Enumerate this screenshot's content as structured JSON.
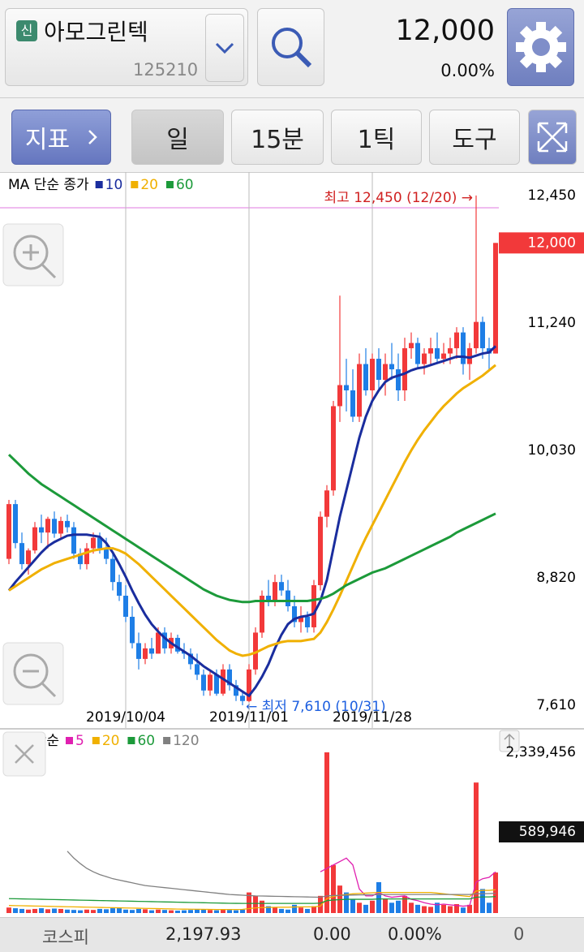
{
  "header": {
    "badge": "신",
    "stock_name": "아모그린텍",
    "stock_code": "125210",
    "price": "12,000",
    "change_rate": "0.00%"
  },
  "toolbar": {
    "indicator": "지표",
    "tabs": [
      "일",
      "15분",
      "1틱"
    ],
    "tools": "도구"
  },
  "chart_data": [
    {
      "type": "candlestick",
      "legend_title": "MA 단순 종가",
      "categories": [
        null,
        null,
        null,
        null,
        null,
        null,
        null,
        null,
        null,
        null,
        null,
        null,
        null,
        null,
        null,
        null,
        null,
        null,
        "2019/10/04",
        null,
        null,
        null,
        null,
        null,
        null,
        null,
        null,
        null,
        null,
        null,
        null,
        null,
        null,
        null,
        null,
        null,
        null,
        "2019/11/01",
        null,
        null,
        null,
        null,
        null,
        null,
        null,
        null,
        null,
        null,
        null,
        null,
        null,
        null,
        null,
        null,
        null,
        null,
        "2019/11/28",
        null,
        null,
        null,
        null,
        null,
        null,
        null,
        null,
        null,
        null,
        null,
        null,
        null,
        null,
        null,
        null,
        null,
        null,
        null
      ],
      "open": [
        9000,
        9520,
        9150,
        8950,
        9080,
        9300,
        9250,
        9380,
        9240,
        9360,
        9300,
        9050,
        8950,
        9100,
        9200,
        9100,
        9000,
        8780,
        8650,
        8450,
        8200,
        8050,
        8150,
        8100,
        8300,
        8150,
        8250,
        8120,
        8100,
        8000,
        7900,
        7750,
        7900,
        7720,
        7950,
        7800,
        7700,
        7650,
        7950,
        8300,
        8650,
        8600,
        8780,
        8700,
        8550,
        8400,
        8450,
        8350,
        8750,
        9400,
        9650,
        10450,
        10650,
        10600,
        10350,
        10850,
        10600,
        10900,
        10700,
        10850,
        10800,
        10600,
        11000,
        11050,
        10850,
        10950,
        11000,
        10900,
        10950,
        11000,
        11150,
        10850,
        11000,
        11250,
        11000,
        10950
      ],
      "high": [
        9560,
        9560,
        9250,
        9100,
        9350,
        9420,
        9400,
        9450,
        9400,
        9420,
        9350,
        9100,
        9150,
        9250,
        9250,
        9200,
        9050,
        8850,
        8750,
        8550,
        8300,
        8200,
        8250,
        8350,
        8350,
        8300,
        8280,
        8200,
        8150,
        8100,
        7950,
        7950,
        7950,
        8000,
        8000,
        7850,
        7750,
        8000,
        8350,
        8700,
        8800,
        8850,
        8850,
        8800,
        8650,
        8550,
        8500,
        8800,
        9450,
        9700,
        10500,
        11500,
        10900,
        10800,
        10950,
        11000,
        10950,
        11000,
        10950,
        11050,
        10950,
        11100,
        11150,
        11100,
        11000,
        11100,
        11150,
        11050,
        11100,
        11200,
        11200,
        11050,
        12450,
        11300,
        11100,
        12000
      ],
      "low": [
        8950,
        9100,
        8900,
        8850,
        9050,
        9150,
        9100,
        9200,
        9200,
        9250,
        9000,
        8900,
        8900,
        9050,
        9050,
        8950,
        8700,
        8600,
        8400,
        8150,
        7950,
        8000,
        8050,
        8100,
        8100,
        8100,
        8100,
        8050,
        7950,
        7850,
        7700,
        7700,
        7700,
        7700,
        7750,
        7650,
        7610,
        7640,
        7900,
        8250,
        8550,
        8550,
        8650,
        8500,
        8350,
        8300,
        8300,
        8300,
        8700,
        9300,
        9600,
        10300,
        10400,
        10300,
        10300,
        10550,
        10500,
        10600,
        10550,
        10700,
        10500,
        10500,
        10900,
        10800,
        10750,
        10850,
        10850,
        10850,
        10850,
        10900,
        10750,
        10700,
        10950,
        10900,
        10800,
        10950
      ],
      "close": [
        9520,
        9150,
        8950,
        9080,
        9300,
        9250,
        9380,
        9240,
        9360,
        9300,
        9050,
        8950,
        9100,
        9200,
        9100,
        9000,
        8780,
        8650,
        8450,
        8200,
        8050,
        8150,
        8100,
        8300,
        8150,
        8250,
        8120,
        8100,
        8000,
        7900,
        7750,
        7900,
        7720,
        7950,
        7800,
        7700,
        7650,
        7950,
        8300,
        8650,
        8600,
        8780,
        8700,
        8550,
        8400,
        8450,
        8350,
        8750,
        9400,
        9650,
        10450,
        10650,
        10600,
        10350,
        10850,
        10600,
        10900,
        10700,
        10850,
        10800,
        10600,
        11000,
        11050,
        10850,
        10950,
        11000,
        10900,
        10950,
        11000,
        11150,
        10850,
        11000,
        11250,
        11000,
        10950,
        12000
      ],
      "up_color": "#f2393a",
      "down_color": "#1e7ee6",
      "series": [
        {
          "name": "10",
          "color": "#1a2d9e",
          "values": [
            8700,
            8780,
            8850,
            8920,
            8990,
            9060,
            9120,
            9160,
            9190,
            9220,
            9230,
            9230,
            9230,
            9220,
            9210,
            9150,
            9060,
            8950,
            8830,
            8700,
            8580,
            8470,
            8380,
            8310,
            8250,
            8200,
            8160,
            8120,
            8080,
            8030,
            7980,
            7940,
            7900,
            7860,
            7820,
            7780,
            7740,
            7700,
            7780,
            7880,
            8000,
            8150,
            8280,
            8380,
            8430,
            8450,
            8460,
            8480,
            8600,
            8800,
            9100,
            9400,
            9650,
            9900,
            10150,
            10350,
            10500,
            10600,
            10680,
            10720,
            10740,
            10760,
            10790,
            10810,
            10820,
            10840,
            10860,
            10880,
            10900,
            10920,
            10920,
            10910,
            10930,
            10950,
            10960,
            11020
          ]
        },
        {
          "name": "20",
          "color": "#f0b000",
          "values": [
            8700,
            8740,
            8780,
            8820,
            8860,
            8900,
            8930,
            8960,
            8980,
            9000,
            9020,
            9040,
            9060,
            9080,
            9090,
            9100,
            9100,
            9080,
            9050,
            9000,
            8950,
            8890,
            8830,
            8770,
            8710,
            8650,
            8590,
            8530,
            8470,
            8410,
            8350,
            8290,
            8230,
            8180,
            8130,
            8100,
            8080,
            8090,
            8110,
            8140,
            8170,
            8190,
            8210,
            8220,
            8220,
            8220,
            8230,
            8240,
            8300,
            8400,
            8520,
            8650,
            8790,
            8930,
            9070,
            9200,
            9320,
            9440,
            9560,
            9680,
            9800,
            9920,
            10030,
            10130,
            10220,
            10300,
            10380,
            10450,
            10510,
            10570,
            10620,
            10660,
            10700,
            10740,
            10790,
            10840
          ]
        },
        {
          "name": "60",
          "color": "#1c9a3a",
          "values": [
            9990,
            9930,
            9870,
            9810,
            9760,
            9710,
            9670,
            9630,
            9590,
            9550,
            9510,
            9470,
            9430,
            9390,
            9350,
            9310,
            9270,
            9230,
            9190,
            9150,
            9110,
            9070,
            9030,
            8990,
            8950,
            8910,
            8870,
            8830,
            8790,
            8750,
            8710,
            8680,
            8650,
            8630,
            8610,
            8600,
            8590,
            8590,
            8600,
            8600,
            8600,
            8600,
            8600,
            8600,
            8600,
            8600,
            8600,
            8610,
            8620,
            8640,
            8670,
            8710,
            8750,
            8780,
            8810,
            8840,
            8870,
            8890,
            8910,
            8940,
            8970,
            9000,
            9030,
            9060,
            9090,
            9120,
            9150,
            9180,
            9210,
            9250,
            9280,
            9310,
            9340,
            9370,
            9400,
            9430
          ]
        }
      ],
      "ylim": [
        7394,
        12673
      ],
      "yticks": [
        {
          "value": 7610,
          "label": "7,610"
        },
        {
          "value": 8820,
          "label": "8,820"
        },
        {
          "value": 10030,
          "label": "10,030"
        },
        {
          "value": 11240,
          "label": "11,240"
        },
        {
          "value": 12450,
          "label": "12,450"
        }
      ],
      "current": {
        "value": 12000,
        "label": "12,000"
      },
      "annotations": [
        "최고 12,450 (12/20) →",
        "← 최저 7,610 (10/31)"
      ]
    },
    {
      "type": "bar",
      "legend_title": "MA 단순",
      "values": [
        80000,
        70000,
        60000,
        50000,
        60000,
        70000,
        55000,
        65000,
        60000,
        50000,
        45000,
        40000,
        50000,
        45000,
        60000,
        55000,
        70000,
        80000,
        50000,
        45000,
        60000,
        55000,
        40000,
        50000,
        45000,
        40000,
        35000,
        40000,
        45000,
        60000,
        50000,
        45000,
        40000,
        50000,
        45000,
        40000,
        50000,
        300000,
        250000,
        180000,
        100000,
        80000,
        60000,
        50000,
        120000,
        80000,
        60000,
        100000,
        250000,
        2339456,
        700000,
        400000,
        300000,
        200000,
        150000,
        120000,
        180000,
        450000,
        200000,
        150000,
        180000,
        250000,
        150000,
        120000,
        100000,
        90000,
        150000,
        120000,
        100000,
        130000,
        80000,
        120000,
        1900000,
        350000,
        150000,
        589946
      ],
      "series": [
        {
          "name": "5",
          "color": "#e020b0",
          "values": [
            null,
            null,
            null,
            null,
            null,
            null,
            null,
            null,
            null,
            null,
            null,
            null,
            null,
            null,
            null,
            null,
            null,
            null,
            null,
            null,
            null,
            null,
            null,
            null,
            null,
            null,
            null,
            null,
            null,
            null,
            null,
            null,
            null,
            null,
            null,
            null,
            null,
            null,
            null,
            null,
            null,
            null,
            null,
            null,
            null,
            null,
            null,
            null,
            600000,
            650000,
            700000,
            750000,
            800000,
            700000,
            350000,
            250000,
            250000,
            300000,
            250000,
            230000,
            240000,
            250000,
            200000,
            180000,
            150000,
            130000,
            120000,
            130000,
            120000,
            110000,
            100000,
            110000,
            450000,
            500000,
            520000,
            600000
          ]
        },
        {
          "name": "20",
          "color": "#f0b000",
          "values": [
            110000,
            108000,
            106000,
            104000,
            102000,
            100000,
            98000,
            96000,
            94000,
            92000,
            90000,
            88000,
            86000,
            84000,
            82000,
            80000,
            78000,
            76000,
            74000,
            72000,
            70000,
            68000,
            66000,
            64000,
            62000,
            60000,
            58000,
            57000,
            56000,
            55000,
            54000,
            53000,
            52000,
            52000,
            52000,
            52000,
            53000,
            65000,
            75000,
            80000,
            82000,
            84000,
            85000,
            85000,
            88000,
            90000,
            90000,
            92000,
            100000,
            210000,
            240000,
            260000,
            270000,
            280000,
            285000,
            290000,
            295000,
            300000,
            300000,
            300000,
            300000,
            300000,
            300000,
            300000,
            300000,
            300000,
            290000,
            280000,
            270000,
            260000,
            250000,
            240000,
            320000,
            330000,
            330000,
            340000
          ]
        },
        {
          "name": "60",
          "color": "#1c9a3a",
          "values": [
            210000,
            208000,
            206000,
            204000,
            202000,
            200000,
            198000,
            196000,
            194000,
            192000,
            190000,
            188000,
            186000,
            184000,
            182000,
            180000,
            178000,
            176000,
            174000,
            172000,
            170000,
            168000,
            166000,
            164000,
            162000,
            160000,
            158000,
            156000,
            154000,
            152000,
            150000,
            148000,
            146000,
            144000,
            142000,
            141000,
            140000,
            140000,
            140000,
            140000,
            140000,
            140000,
            140000,
            140000,
            140000,
            140000,
            140000,
            140000,
            145000,
            180000,
            190000,
            195000,
            200000,
            200000,
            200000,
            200000,
            200000,
            205000,
            205000,
            205000,
            205000,
            205000,
            205000,
            205000,
            205000,
            205000,
            205000,
            205000,
            205000,
            205000,
            205000,
            205000,
            230000,
            235000,
            235000,
            240000
          ]
        },
        {
          "name": "120",
          "color": "#808080",
          "values": [
            null,
            null,
            null,
            null,
            null,
            null,
            null,
            null,
            null,
            900000,
            800000,
            720000,
            650000,
            600000,
            560000,
            530000,
            500000,
            480000,
            460000,
            440000,
            420000,
            400000,
            390000,
            380000,
            370000,
            360000,
            350000,
            340000,
            330000,
            320000,
            310000,
            300000,
            290000,
            280000,
            270000,
            265000,
            260000,
            255000,
            250000,
            248000,
            246000,
            244000,
            242000,
            240000,
            238000,
            236000,
            234000,
            232000,
            230000,
            250000,
            255000,
            258000,
            260000,
            262000,
            264000,
            265000,
            266000,
            268000,
            270000,
            270000,
            270000,
            270000,
            270000,
            270000,
            270000,
            270000,
            270000,
            270000,
            270000,
            270000,
            270000,
            270000,
            280000,
            282000,
            284000,
            288000
          ]
        }
      ],
      "ylim": [
        0,
        2339456
      ],
      "yticks": [
        {
          "value": 2339456,
          "label": "2,339,456"
        }
      ],
      "current": {
        "value": 589946,
        "label": "589,946"
      }
    }
  ],
  "footer": {
    "index_name": "코스피",
    "index_value": "2,197.93",
    "change": "0.00",
    "change_rate": "0.00%",
    "volume": "0"
  }
}
